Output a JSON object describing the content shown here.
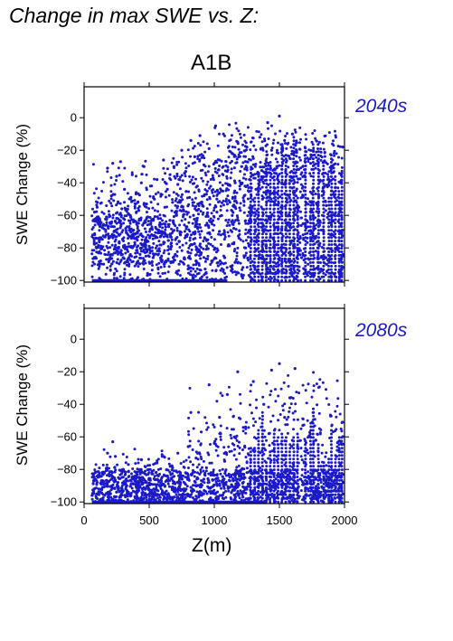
{
  "title": "Change in max SWE vs. Z:",
  "chart_data": {
    "type": "scatter",
    "scenario": "A1B",
    "xlabel": "Z(m)",
    "xlim": [
      0,
      2000
    ],
    "xticks": [
      0,
      500,
      1000,
      1500,
      2000
    ],
    "series_color": "#1a1ac8",
    "panels": [
      {
        "period": "2040s",
        "ylabel": "SWE Change (%)",
        "ylim": [
          -101,
          19
        ],
        "yticks": [
          0,
          -20,
          -40,
          -60,
          -80,
          -100
        ],
        "floor_band": [
          [
            60,
            1100
          ]
        ],
        "points": [
          [
            80,
            -58
          ],
          [
            90,
            -74
          ],
          [
            100,
            -55
          ],
          [
            110,
            -83
          ],
          [
            130,
            -79
          ],
          [
            150,
            -90
          ],
          [
            170,
            -72
          ],
          [
            180,
            -31
          ],
          [
            190,
            -88
          ],
          [
            200,
            -65
          ],
          [
            210,
            -48
          ],
          [
            220,
            -28
          ],
          [
            230,
            -70
          ],
          [
            240,
            -83
          ],
          [
            250,
            -36
          ],
          [
            260,
            -62
          ],
          [
            270,
            -77
          ],
          [
            280,
            -27
          ],
          [
            290,
            -56
          ],
          [
            300,
            -86
          ],
          [
            310,
            -44
          ],
          [
            320,
            -68
          ],
          [
            330,
            -81
          ],
          [
            340,
            -59
          ],
          [
            350,
            -73
          ],
          [
            360,
            -49
          ],
          [
            370,
            -35
          ],
          [
            380,
            -64
          ],
          [
            390,
            -78
          ],
          [
            400,
            -46
          ],
          [
            410,
            -70
          ],
          [
            420,
            -57
          ],
          [
            430,
            -84
          ],
          [
            440,
            -40
          ],
          [
            450,
            -66
          ],
          [
            460,
            -30
          ],
          [
            470,
            -75
          ],
          [
            480,
            -53
          ],
          [
            490,
            -61
          ],
          [
            500,
            -79
          ],
          [
            510,
            -42
          ],
          [
            520,
            -68
          ],
          [
            530,
            -86
          ],
          [
            540,
            -50
          ],
          [
            550,
            -73
          ],
          [
            560,
            -38
          ],
          [
            570,
            -62
          ],
          [
            580,
            -82
          ],
          [
            590,
            -47
          ],
          [
            600,
            -70
          ],
          [
            610,
            -26
          ],
          [
            620,
            -55
          ],
          [
            630,
            -88
          ],
          [
            640,
            -44
          ],
          [
            650,
            -67
          ],
          [
            660,
            -35
          ],
          [
            670,
            -77
          ],
          [
            680,
            -52
          ],
          [
            690,
            -30
          ],
          [
            700,
            -84
          ],
          [
            710,
            -60
          ],
          [
            720,
            -41
          ],
          [
            730,
            -90
          ],
          [
            740,
            -72
          ],
          [
            750,
            -20
          ],
          [
            760,
            -57
          ],
          [
            770,
            -86
          ],
          [
            780,
            -33
          ],
          [
            790,
            -67
          ],
          [
            800,
            -91
          ],
          [
            810,
            -49
          ],
          [
            820,
            -14
          ],
          [
            830,
            -78
          ],
          [
            840,
            -60
          ],
          [
            850,
            -24
          ],
          [
            860,
            -88
          ],
          [
            870,
            -42
          ],
          [
            880,
            -70
          ],
          [
            890,
            -11
          ],
          [
            900,
            -83
          ],
          [
            910,
            -54
          ],
          [
            920,
            -29
          ],
          [
            930,
            -93
          ],
          [
            940,
            -47
          ],
          [
            950,
            -75
          ],
          [
            960,
            -19
          ],
          [
            970,
            -64
          ],
          [
            980,
            -88
          ],
          [
            990,
            -37
          ],
          [
            1000,
            -81
          ],
          [
            1010,
            -5
          ],
          [
            1020,
            -58
          ],
          [
            1030,
            -91
          ],
          [
            1040,
            -26
          ],
          [
            1050,
            -72
          ],
          [
            1060,
            -45
          ],
          [
            1070,
            -10
          ],
          [
            1080,
            -86
          ],
          [
            1090,
            -63
          ],
          [
            1100,
            -33
          ],
          [
            1110,
            -78
          ],
          [
            1120,
            -52
          ],
          [
            1130,
            -94
          ],
          [
            1140,
            -22
          ],
          [
            1150,
            -68
          ],
          [
            1160,
            -40
          ],
          [
            1170,
            -87
          ],
          [
            1180,
            -15
          ],
          [
            1190,
            -74
          ],
          [
            1200,
            -57
          ],
          [
            1210,
            -30
          ],
          [
            1220,
            -92
          ],
          [
            1230,
            -48
          ],
          [
            1240,
            -80
          ],
          [
            1250,
            -18
          ],
          [
            1260,
            -65
          ],
          [
            1270,
            -38
          ],
          [
            1280,
            -89
          ],
          [
            1290,
            -55
          ],
          [
            1300,
            -25
          ],
          [
            1310,
            -76
          ],
          [
            1320,
            -44
          ],
          [
            1330,
            -95
          ],
          [
            1340,
            -60
          ],
          [
            1350,
            -12
          ],
          [
            1360,
            -82
          ],
          [
            1370,
            -50
          ],
          [
            1380,
            -70
          ],
          [
            1390,
            -34
          ],
          [
            1400,
            -90
          ],
          [
            1410,
            -3
          ],
          [
            1420,
            -62
          ],
          [
            1430,
            -85
          ],
          [
            1440,
            -20
          ],
          [
            1450,
            -74
          ],
          [
            1460,
            -46
          ],
          [
            1470,
            -96
          ],
          [
            1480,
            -30
          ],
          [
            1490,
            -58
          ],
          [
            1500,
            1
          ],
          [
            1510,
            -80
          ],
          [
            1520,
            -40
          ],
          [
            1530,
            -93
          ],
          [
            1540,
            -14
          ],
          [
            1550,
            -68
          ],
          [
            1560,
            -52
          ],
          [
            1570,
            -88
          ],
          [
            1580,
            -25
          ],
          [
            1590,
            -77
          ],
          [
            1600,
            -10
          ],
          [
            1610,
            -62
          ],
          [
            1620,
            -95
          ],
          [
            1630,
            -36
          ],
          [
            1640,
            -72
          ],
          [
            1650,
            -55
          ],
          [
            1670,
            -86
          ],
          [
            1680,
            -30
          ],
          [
            1700,
            -66
          ],
          [
            1720,
            -90
          ],
          [
            1740,
            -28
          ],
          [
            1760,
            -60
          ],
          [
            1780,
            -82
          ],
          [
            1800,
            -47
          ],
          [
            1820,
            -93
          ],
          [
            1840,
            -70
          ],
          [
            1860,
            -54
          ],
          [
            1880,
            -88
          ],
          [
            1900,
            -66
          ],
          [
            1920,
            -96
          ],
          [
            1940,
            -80
          ],
          [
            1960,
            -58
          ],
          [
            1975,
            -35
          ],
          [
            1985,
            -18
          ],
          [
            1990,
            -92
          ]
        ]
      },
      {
        "period": "2080s",
        "ylabel": "SWE Change (%)",
        "ylim": [
          -101,
          19
        ],
        "yticks": [
          0,
          -20,
          -40,
          -60,
          -80,
          -100
        ],
        "floor_band": [
          [
            60,
            1400
          ]
        ],
        "points": [
          [
            180,
            -70
          ],
          [
            200,
            -95
          ],
          [
            220,
            -63
          ],
          [
            240,
            -72
          ],
          [
            260,
            -88
          ],
          [
            280,
            -97
          ],
          [
            300,
            -80
          ],
          [
            320,
            -92
          ],
          [
            340,
            -77
          ],
          [
            360,
            -96
          ],
          [
            380,
            -85
          ],
          [
            400,
            -82
          ],
          [
            420,
            -93
          ],
          [
            440,
            -74
          ],
          [
            460,
            -98
          ],
          [
            480,
            -88
          ],
          [
            500,
            -80
          ],
          [
            520,
            -95
          ],
          [
            540,
            -86
          ],
          [
            560,
            -76
          ],
          [
            580,
            -99
          ],
          [
            600,
            -72
          ],
          [
            620,
            -90
          ],
          [
            640,
            -84
          ],
          [
            660,
            -97
          ],
          [
            680,
            -79
          ],
          [
            700,
            -92
          ],
          [
            720,
            -70
          ],
          [
            740,
            -88
          ],
          [
            760,
            -95
          ],
          [
            780,
            -82
          ],
          [
            800,
            -66
          ],
          [
            820,
            -45
          ],
          [
            840,
            -93
          ],
          [
            860,
            -73
          ],
          [
            880,
            -97
          ],
          [
            900,
            -57
          ],
          [
            920,
            -86
          ],
          [
            940,
            -79
          ],
          [
            960,
            -28
          ],
          [
            980,
            -94
          ],
          [
            1000,
            -64
          ],
          [
            1020,
            -89
          ],
          [
            1040,
            -48
          ],
          [
            1060,
            -96
          ],
          [
            1080,
            -75
          ],
          [
            1100,
            -34
          ],
          [
            1120,
            -87
          ],
          [
            1140,
            -93
          ],
          [
            1160,
            -60
          ],
          [
            1180,
            -20
          ],
          [
            1200,
            -82
          ],
          [
            1220,
            -97
          ],
          [
            1240,
            -54
          ],
          [
            1260,
            -89
          ],
          [
            1280,
            -74
          ],
          [
            1300,
            -26
          ],
          [
            1320,
            -95
          ],
          [
            1340,
            -67
          ],
          [
            1360,
            -85
          ],
          [
            1380,
            -40
          ],
          [
            1400,
            -92
          ],
          [
            1420,
            -58
          ],
          [
            1440,
            -19
          ],
          [
            1460,
            -88
          ],
          [
            1480,
            -72
          ],
          [
            1500,
            -15
          ],
          [
            1520,
            -90
          ],
          [
            1540,
            -48
          ],
          [
            1560,
            -80
          ],
          [
            1580,
            -36
          ],
          [
            1600,
            -96
          ],
          [
            1620,
            -18
          ],
          [
            1640,
            -66
          ],
          [
            1660,
            -86
          ],
          [
            1680,
            -53
          ],
          [
            1700,
            -92
          ],
          [
            1720,
            -70
          ],
          [
            1740,
            -88
          ],
          [
            1760,
            -97
          ],
          [
            1780,
            -62
          ],
          [
            1800,
            -84
          ],
          [
            1820,
            -94
          ],
          [
            1840,
            -78
          ],
          [
            1860,
            -90
          ],
          [
            1880,
            -99
          ],
          [
            1900,
            -85
          ],
          [
            1920,
            -93
          ],
          [
            1940,
            -72
          ],
          [
            1960,
            -96
          ],
          [
            1975,
            -64
          ],
          [
            1985,
            -51
          ],
          [
            1990,
            -88
          ]
        ]
      }
    ]
  }
}
